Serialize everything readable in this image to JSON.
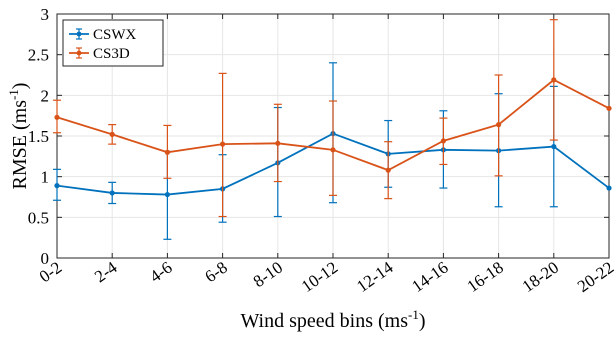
{
  "chart_data": {
    "type": "line",
    "categories": [
      "0-2",
      "2-4",
      "4-6",
      "6-8",
      "8-10",
      "10-12",
      "12-14",
      "14-16",
      "16-18",
      "18-20",
      "20-22"
    ],
    "xlabel": "Wind speed bins (ms",
    "xlabel_sup": "-1",
    "xlabel_end": ")",
    "ylabel": "RMSE (ms",
    "ylabel_sup": "-1",
    "ylabel_end": ")",
    "ylim": [
      0,
      3
    ],
    "yticks": [
      0,
      0.5,
      1,
      1.5,
      2,
      2.5,
      3
    ],
    "ytick_labels": [
      "0",
      "0.5",
      "1",
      "1.5",
      "2",
      "2.5",
      "3"
    ],
    "grid": true,
    "legend_position": "top-left",
    "series": [
      {
        "name": "CSWX",
        "color": "#0072bd",
        "values": [
          0.89,
          0.8,
          0.78,
          0.85,
          1.17,
          1.53,
          1.28,
          1.33,
          1.32,
          1.37,
          0.86
        ],
        "lower": [
          0.71,
          0.67,
          0.23,
          0.44,
          0.51,
          0.68,
          0.87,
          0.86,
          0.63,
          0.63,
          null
        ],
        "upper": [
          1.09,
          0.93,
          1.31,
          1.27,
          1.85,
          2.4,
          1.69,
          1.81,
          2.02,
          2.11,
          null
        ]
      },
      {
        "name": "CS3D",
        "color": "#d95319",
        "values": [
          1.73,
          1.52,
          1.3,
          1.4,
          1.41,
          1.33,
          1.08,
          1.44,
          1.64,
          2.19,
          1.84
        ],
        "lower": [
          1.54,
          1.4,
          0.98,
          0.51,
          0.94,
          0.77,
          0.73,
          1.15,
          1.01,
          1.45,
          null
        ],
        "upper": [
          1.94,
          1.64,
          1.63,
          2.27,
          1.89,
          1.93,
          1.43,
          1.72,
          2.25,
          2.93,
          null
        ]
      }
    ]
  }
}
